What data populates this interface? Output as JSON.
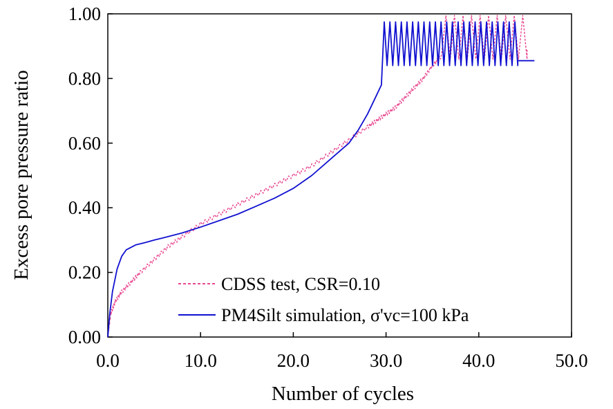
{
  "chart_data": {
    "type": "line",
    "title": "",
    "xlabel": "Number of cycles",
    "ylabel": "Excess pore pressure ratio",
    "xlim": [
      0,
      50
    ],
    "ylim": [
      0,
      1
    ],
    "xticks": [
      "0.0",
      "10.0",
      "20.0",
      "30.0",
      "40.0",
      "50.0"
    ],
    "yticks": [
      "0.00",
      "0.20",
      "0.40",
      "0.60",
      "0.80",
      "1.00"
    ],
    "grid": false,
    "legend_position": "bottom-right",
    "series": [
      {
        "name": "CDSS test, CSR=0.10",
        "color": "#e8468f",
        "style": "dashed",
        "x": [
          0,
          0.3,
          0.8,
          1.5,
          2.5,
          3.5,
          5,
          6.5,
          8,
          10,
          12,
          14,
          16,
          18,
          20,
          22,
          24,
          26,
          28,
          29,
          30,
          31,
          32,
          33,
          34,
          35,
          36
        ],
        "y": [
          0,
          0.07,
          0.11,
          0.14,
          0.17,
          0.2,
          0.24,
          0.28,
          0.31,
          0.35,
          0.38,
          0.41,
          0.44,
          0.47,
          0.5,
          0.53,
          0.57,
          0.61,
          0.65,
          0.67,
          0.69,
          0.71,
          0.74,
          0.77,
          0.8,
          0.84,
          0.87
        ],
        "oscillation": {
          "x_start": 36,
          "x_end": 45.2,
          "n_cycles": 10,
          "min": 0.86,
          "max": 0.995,
          "final": 0.89
        }
      },
      {
        "name": "PM4Silt simulation, σ'vc=100 kPa",
        "color": "#1010d0",
        "style": "solid",
        "x": [
          0,
          0.2,
          0.5,
          1,
          1.5,
          2,
          3,
          4,
          5,
          6,
          8,
          10,
          12,
          14,
          16,
          18,
          20,
          22,
          24,
          26,
          27,
          28,
          28.5,
          29,
          29.5
        ],
        "y": [
          0,
          0.07,
          0.14,
          0.21,
          0.25,
          0.27,
          0.285,
          0.292,
          0.3,
          0.307,
          0.322,
          0.34,
          0.36,
          0.38,
          0.405,
          0.43,
          0.46,
          0.5,
          0.55,
          0.6,
          0.64,
          0.69,
          0.72,
          0.75,
          0.78
        ],
        "oscillation": {
          "x_start": 29.5,
          "x_end": 44.2,
          "n_cycles": 24,
          "min": 0.84,
          "max": 0.975,
          "final": 0.855,
          "final_x_end": 46
        }
      }
    ]
  }
}
